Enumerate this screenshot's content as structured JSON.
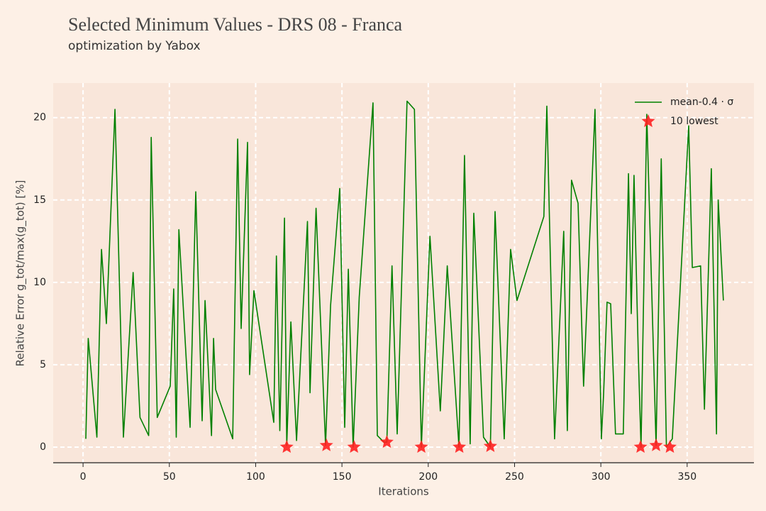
{
  "chart_data": {
    "type": "line",
    "title": "Selected Minimum Values - DRS 08 - Franca",
    "subtitle": "optimization by Yabox",
    "xlabel": "Iterations",
    "ylabel": "Relative Error g_tot/max(g_tot) [%]",
    "xlim": [
      -17.3,
      388.7
    ],
    "ylim": [
      -0.95,
      22.1
    ],
    "xticks": [
      0,
      50,
      100,
      150,
      200,
      250,
      300,
      350
    ],
    "yticks": [
      0,
      5,
      10,
      15,
      20
    ],
    "grid": true,
    "legend": "upper right",
    "series": [
      {
        "name": "mean-0.4 · σ",
        "color": "#008000",
        "type": "line",
        "x": [
          1.6,
          3,
          8,
          10.7,
          13.5,
          18.5,
          23.4,
          29,
          33,
          38,
          39.5,
          43,
          50.5,
          52.5,
          54,
          55.5,
          62,
          65.3,
          69,
          70.7,
          74.4,
          75.6,
          76.8,
          86.7,
          89.6,
          91.6,
          95.3,
          96.5,
          99,
          110.5,
          112,
          114,
          116.7,
          118,
          120.4,
          123.7,
          130,
          131.5,
          135,
          140.5,
          143.4,
          148.7,
          151.6,
          153.7,
          156.5,
          160,
          168,
          170.5,
          174.3,
          176,
          179,
          182,
          187.7,
          192,
          196,
          201,
          207,
          211,
          217.8,
          221,
          224.3,
          226.4,
          232,
          236,
          238.7,
          244,
          247.7,
          251.4,
          267,
          268.7,
          273.2,
          278.5,
          280.6,
          283,
          286.8,
          290,
          296.6,
          300.3,
          301.6,
          303.6,
          305.7,
          308.5,
          313,
          316,
          317.6,
          319.2,
          321.7,
          323.3,
          326.6,
          332,
          335,
          338,
          341.4,
          350.9,
          353,
          357.8,
          360,
          364,
          367,
          368,
          371
        ],
        "values": [
          0.5,
          6.6,
          0.6,
          12,
          7.5,
          20.5,
          0.6,
          10.6,
          1.8,
          0.7,
          18.8,
          1.8,
          3.7,
          9.6,
          0.6,
          13.2,
          1.2,
          15.5,
          1.6,
          8.9,
          0.7,
          6.6,
          3.5,
          0.5,
          18.7,
          7.2,
          18.5,
          4.4,
          9.5,
          1.5,
          11.6,
          1.0,
          13.9,
          0.1,
          7.6,
          0.4,
          13.7,
          3.3,
          14.5,
          0.1,
          8.6,
          15.7,
          1.2,
          10.8,
          0.0,
          9.1,
          20.9,
          0.7,
          0.3,
          0.3,
          11,
          0.8,
          21,
          20.5,
          0.0,
          12.8,
          2.2,
          11,
          0.0,
          17.7,
          0.2,
          14.2,
          0.6,
          0.0,
          14.3,
          0.5,
          12,
          8.9,
          14,
          20.7,
          0.5,
          13.1,
          1.0,
          16.2,
          14.8,
          3.7,
          20.5,
          0.5,
          3.2,
          8.8,
          8.7,
          0.8,
          0.8,
          16.6,
          8.1,
          16.5,
          5.5,
          0.0,
          20.2,
          0.1,
          17.5,
          0.0,
          0.5,
          19.5,
          10.9,
          11,
          2.3,
          16.9,
          0.8,
          15,
          8.9
        ]
      },
      {
        "name": "10 lowest",
        "color": "#ff2020",
        "type": "scatter",
        "marker": "star",
        "x": [
          118,
          141,
          157,
          176,
          196,
          218,
          236,
          323,
          332,
          340
        ],
        "values": [
          0.0,
          0.1,
          0.0,
          0.3,
          0.0,
          0.0,
          0.05,
          0.0,
          0.1,
          0.0
        ]
      }
    ]
  }
}
